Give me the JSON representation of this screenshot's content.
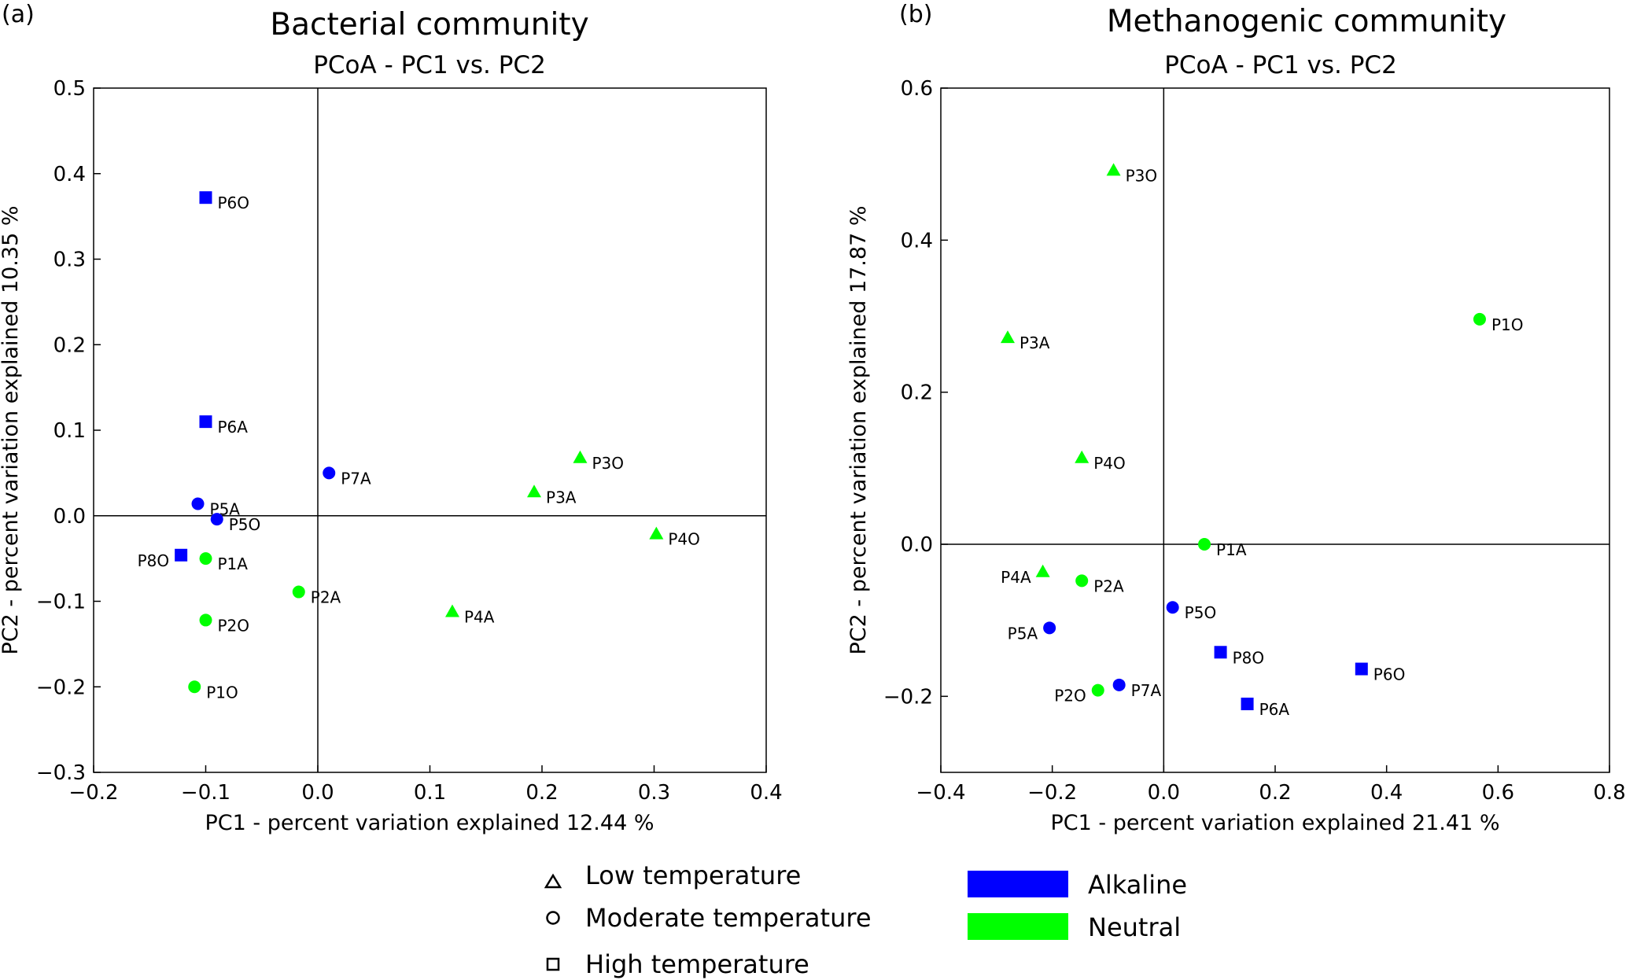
{
  "legend": {
    "shapes": [
      {
        "shape": "triangle",
        "label": "Low temperature"
      },
      {
        "shape": "circle",
        "label": "Moderate temperature"
      },
      {
        "shape": "square",
        "label": "High temperature"
      }
    ],
    "colors": [
      {
        "label": "Alkaline",
        "color": "#0000ff"
      },
      {
        "label": "Neutral",
        "color": "#00ff00"
      }
    ]
  },
  "chart_data": [
    {
      "type": "scatter",
      "panel": "(a)",
      "title": "Bacterial community",
      "subtitle": "PCoA - PC1 vs. PC2",
      "xlabel": "PC1 - percent variation explained 12.44 %",
      "ylabel": "PC2 - percent variation explained 10.35 %",
      "xlim": [
        -0.2,
        0.4
      ],
      "ylim": [
        -0.3,
        0.5
      ],
      "xticks": [
        -0.2,
        -0.1,
        0.0,
        0.1,
        0.2,
        0.3,
        0.4
      ],
      "xticklabels": [
        "−0.2",
        "−0.1",
        "0.0",
        "0.1",
        "0.2",
        "0.3",
        "0.4"
      ],
      "yticks": [
        -0.3,
        -0.2,
        -0.1,
        0.0,
        0.1,
        0.2,
        0.3,
        0.4,
        0.5
      ],
      "yticklabels": [
        "−0.3",
        "−0.2",
        "−0.1",
        "0.0",
        "0.1",
        "0.2",
        "0.3",
        "0.4",
        "0.5"
      ],
      "points": [
        {
          "label": "P6O",
          "x": -0.1,
          "y": 0.372,
          "shape": "square",
          "color": "#0000ff",
          "anchor": "right"
        },
        {
          "label": "P6A",
          "x": -0.1,
          "y": 0.11,
          "shape": "square",
          "color": "#0000ff",
          "anchor": "right"
        },
        {
          "label": "P7A",
          "x": 0.01,
          "y": 0.05,
          "shape": "circle",
          "color": "#0000ff",
          "anchor": "right"
        },
        {
          "label": "P5A",
          "x": -0.107,
          "y": 0.014,
          "shape": "circle",
          "color": "#0000ff",
          "anchor": "right"
        },
        {
          "label": "P5O",
          "x": -0.09,
          "y": -0.004,
          "shape": "circle",
          "color": "#0000ff",
          "anchor": "right"
        },
        {
          "label": "P8O",
          "x": -0.122,
          "y": -0.046,
          "shape": "square",
          "color": "#0000ff",
          "anchor": "left"
        },
        {
          "label": "P1A",
          "x": -0.1,
          "y": -0.05,
          "shape": "circle",
          "color": "#00ff00",
          "anchor": "right"
        },
        {
          "label": "P2O",
          "x": -0.1,
          "y": -0.122,
          "shape": "circle",
          "color": "#00ff00",
          "anchor": "right"
        },
        {
          "label": "P1O",
          "x": -0.11,
          "y": -0.2,
          "shape": "circle",
          "color": "#00ff00",
          "anchor": "right"
        },
        {
          "label": "P2A",
          "x": -0.017,
          "y": -0.089,
          "shape": "circle",
          "color": "#00ff00",
          "anchor": "right"
        },
        {
          "label": "P4A",
          "x": 0.12,
          "y": -0.112,
          "shape": "triangle",
          "color": "#00ff00",
          "anchor": "right"
        },
        {
          "label": "P3A",
          "x": 0.193,
          "y": 0.028,
          "shape": "triangle",
          "color": "#00ff00",
          "anchor": "right"
        },
        {
          "label": "P3O",
          "x": 0.234,
          "y": 0.068,
          "shape": "triangle",
          "color": "#00ff00",
          "anchor": "right"
        },
        {
          "label": "P4O",
          "x": 0.302,
          "y": -0.021,
          "shape": "triangle",
          "color": "#00ff00",
          "anchor": "right"
        }
      ]
    },
    {
      "type": "scatter",
      "panel": "(b)",
      "title": "Methanogenic community",
      "subtitle": "PCoA - PC1 vs. PC2",
      "xlabel": "PC1 - percent variation explained 21.41 %",
      "ylabel": "PC2 - percent variation explained 17.87 %",
      "xlim": [
        -0.4,
        0.8
      ],
      "ylim": [
        -0.3,
        0.6
      ],
      "xticks": [
        -0.4,
        -0.2,
        0.0,
        0.2,
        0.4,
        0.6,
        0.8
      ],
      "xticklabels": [
        "−0.4",
        "−0.2",
        "0.0",
        "0.2",
        "0.4",
        "0.6",
        "0.8"
      ],
      "yticks": [
        -0.2,
        0.0,
        0.2,
        0.4,
        0.6
      ],
      "yticklabels": [
        "−0.2",
        "0.0",
        "0.2",
        "0.4",
        "0.6"
      ],
      "points": [
        {
          "label": "P3O",
          "x": -0.09,
          "y": 0.492,
          "shape": "triangle",
          "color": "#00ff00",
          "anchor": "right"
        },
        {
          "label": "P3A",
          "x": -0.28,
          "y": 0.272,
          "shape": "triangle",
          "color": "#00ff00",
          "anchor": "right"
        },
        {
          "label": "P1O",
          "x": 0.567,
          "y": 0.296,
          "shape": "circle",
          "color": "#00ff00",
          "anchor": "right"
        },
        {
          "label": "P4O",
          "x": -0.147,
          "y": 0.114,
          "shape": "triangle",
          "color": "#00ff00",
          "anchor": "right"
        },
        {
          "label": "P1A",
          "x": 0.073,
          "y": 0.0,
          "shape": "circle",
          "color": "#00ff00",
          "anchor": "right"
        },
        {
          "label": "P4A",
          "x": -0.217,
          "y": -0.036,
          "shape": "triangle",
          "color": "#00ff00",
          "anchor": "left"
        },
        {
          "label": "P2A",
          "x": -0.147,
          "y": -0.048,
          "shape": "circle",
          "color": "#00ff00",
          "anchor": "right"
        },
        {
          "label": "P5O",
          "x": 0.016,
          "y": -0.083,
          "shape": "circle",
          "color": "#0000ff",
          "anchor": "right"
        },
        {
          "label": "P5A",
          "x": -0.205,
          "y": -0.11,
          "shape": "circle",
          "color": "#0000ff",
          "anchor": "left"
        },
        {
          "label": "P8O",
          "x": 0.102,
          "y": -0.142,
          "shape": "square",
          "color": "#0000ff",
          "anchor": "right"
        },
        {
          "label": "P6O",
          "x": 0.355,
          "y": -0.164,
          "shape": "square",
          "color": "#0000ff",
          "anchor": "right"
        },
        {
          "label": "P7A",
          "x": -0.08,
          "y": -0.185,
          "shape": "circle",
          "color": "#0000ff",
          "anchor": "right"
        },
        {
          "label": "P2O",
          "x": -0.118,
          "y": -0.192,
          "shape": "circle",
          "color": "#00ff00",
          "anchor": "left"
        },
        {
          "label": "P6A",
          "x": 0.15,
          "y": -0.21,
          "shape": "square",
          "color": "#0000ff",
          "anchor": "right"
        }
      ]
    }
  ]
}
